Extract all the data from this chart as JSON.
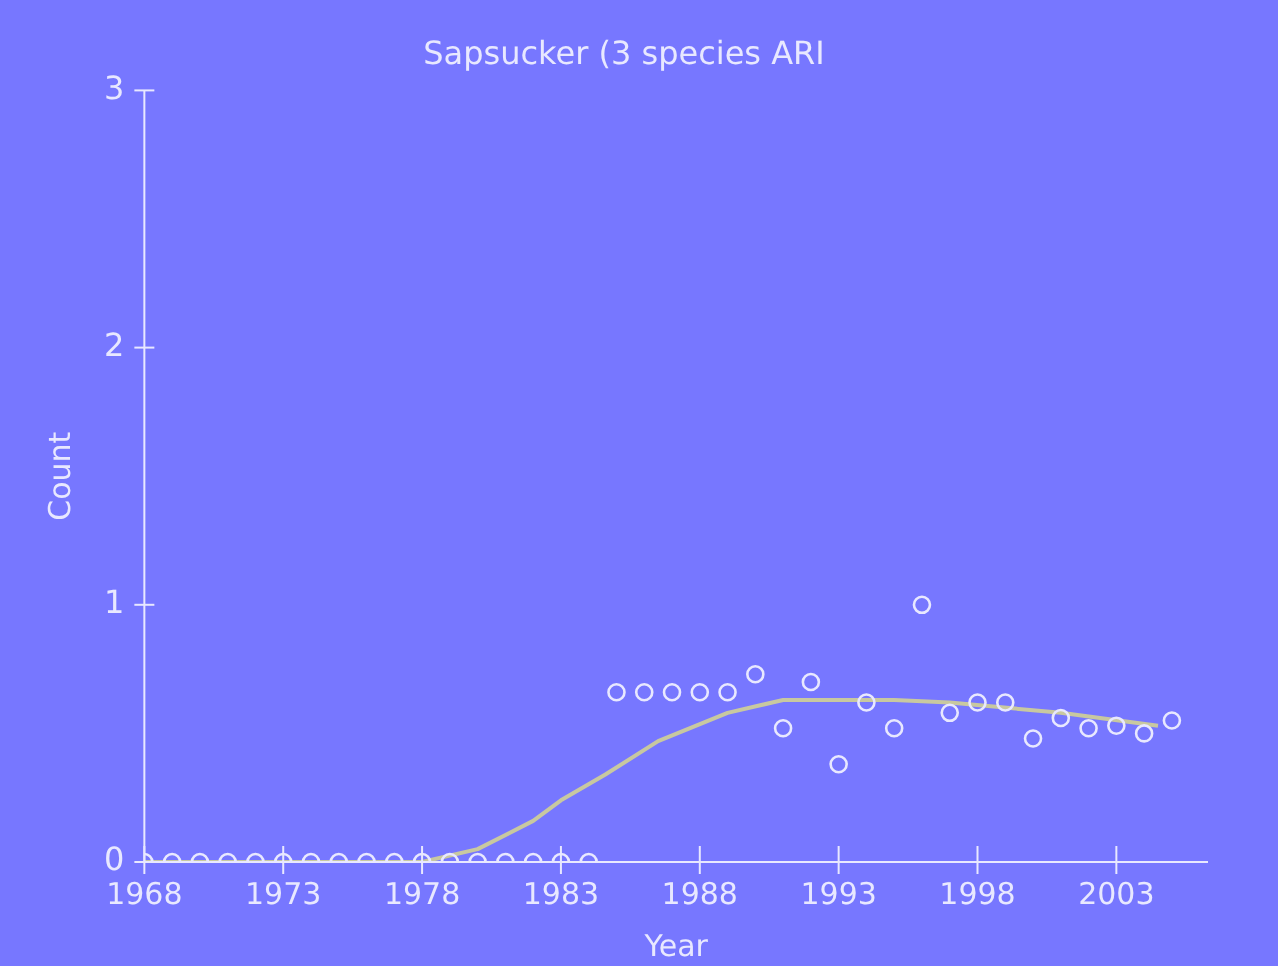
{
  "chart_data": {
    "type": "scatter",
    "title": "Sapsucker (3 species ARI",
    "xlabel": "Year",
    "ylabel": "Count",
    "xlim": [
      1968,
      2006.3
    ],
    "xticks": [
      1968,
      1973,
      1978,
      1983,
      1988,
      1993,
      1998,
      2003
    ],
    "ylim": [
      0,
      3
    ],
    "yticks": [
      0,
      1,
      2,
      3
    ],
    "grid": false,
    "legend": false,
    "marker": "circle",
    "series": [
      {
        "color": "#e8e8ff",
        "x": [
          1968,
          1969,
          1970,
          1971,
          1972,
          1973,
          1974,
          1975,
          1976,
          1977,
          1978,
          1979,
          1980,
          1981,
          1982,
          1983,
          1984,
          1985,
          1986,
          1987,
          1988,
          1989,
          1990,
          1991,
          1992,
          1993,
          1994,
          1995,
          1996,
          1997,
          1998,
          1999,
          2000,
          2001,
          2002,
          2003,
          2004,
          2005
        ],
        "values": [
          0,
          0,
          0,
          0,
          0,
          0,
          0,
          0,
          0,
          0,
          0,
          0,
          0,
          0,
          0,
          0,
          0,
          0.66,
          0.66,
          0.66,
          0.66,
          0.66,
          0.73,
          0.52,
          0.7,
          0.38,
          0.62,
          0.52,
          1.0,
          0.58,
          0.62,
          0.62,
          0.48,
          0.56,
          0.52,
          0.53,
          0.5,
          0.55
        ]
      },
      {
        "type": "line",
        "color": "#c8c8a0",
        "marker": "none",
        "x": [
          1968,
          1978,
          1980,
          1982,
          1983,
          1984.6,
          1986.5,
          1989,
          1991,
          1995,
          1997,
          2001,
          2004.5
        ],
        "values": [
          0,
          0,
          0.05,
          0.16,
          0.24,
          0.34,
          0.47,
          0.58,
          0.63,
          0.63,
          0.62,
          0.58,
          0.53
        ]
      }
    ]
  }
}
